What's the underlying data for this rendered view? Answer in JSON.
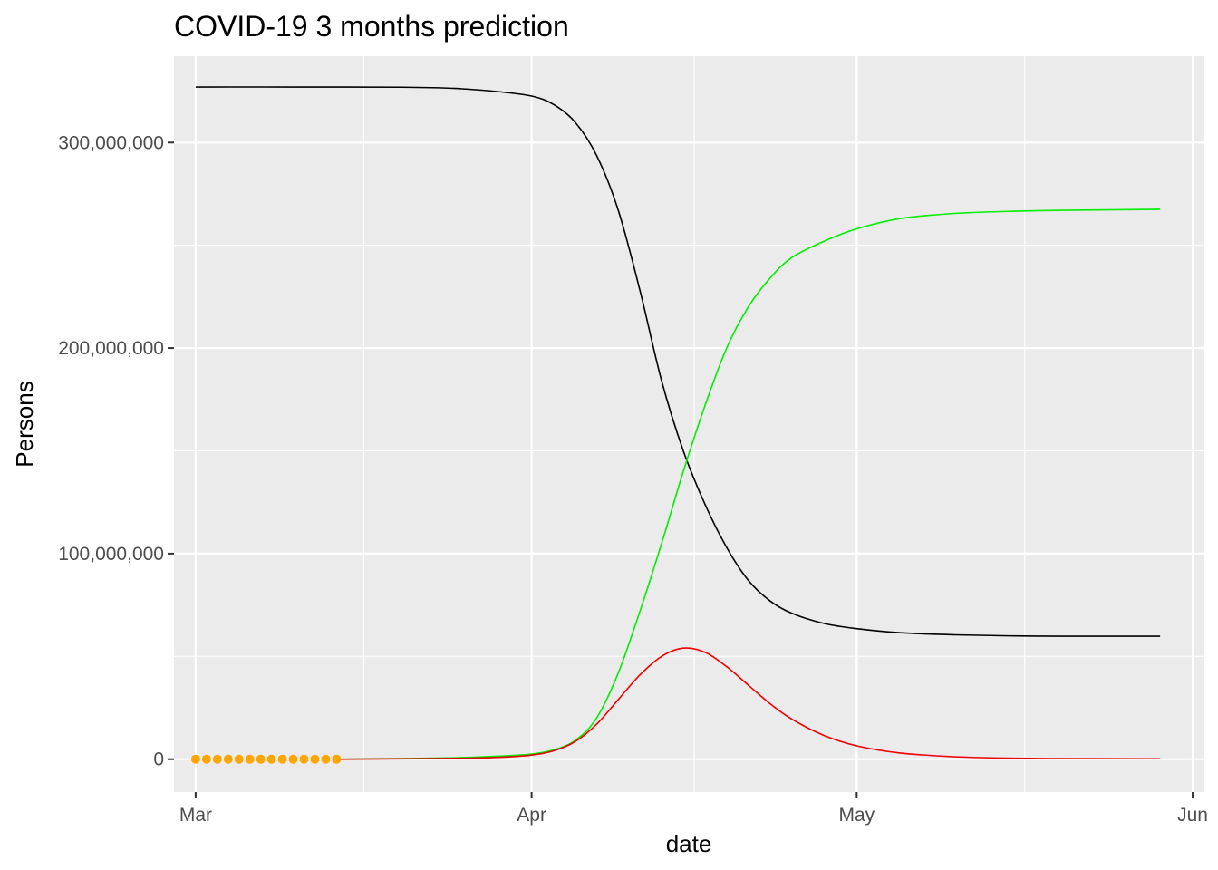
{
  "chart_data": {
    "type": "line",
    "title": "COVID-19 3 months prediction",
    "xlabel": "date",
    "ylabel": "Persons",
    "xlim": [
      "2020-02-28",
      "2020-06-02"
    ],
    "ylim": [
      -16000000,
      342000000
    ],
    "x_ticks": [
      {
        "date": "2020-03-01",
        "label": "Mar"
      },
      {
        "date": "2020-04-01",
        "label": "Apr"
      },
      {
        "date": "2020-05-01",
        "label": "May"
      },
      {
        "date": "2020-06-01",
        "label": "Jun"
      }
    ],
    "y_ticks": [
      {
        "value": 0,
        "label": "0"
      },
      {
        "value": 100000000,
        "label": "100,000,000"
      },
      {
        "value": 200000000,
        "label": "200,000,000"
      },
      {
        "value": 300000000,
        "label": "300,000,000"
      }
    ],
    "grid": true,
    "legend": "none",
    "series": [
      {
        "color": "#000000",
        "points": [
          [
            "2020-03-01",
            327000000
          ],
          [
            "2020-03-10",
            327000000
          ],
          [
            "2020-03-20",
            326900000
          ],
          [
            "2020-03-25",
            326300000
          ],
          [
            "2020-03-29",
            324700000
          ],
          [
            "2020-04-01",
            322600000
          ],
          [
            "2020-04-03",
            318600000
          ],
          [
            "2020-04-05",
            310000000
          ],
          [
            "2020-04-07",
            293700000
          ],
          [
            "2020-04-09",
            267000000
          ],
          [
            "2020-04-11",
            228000000
          ],
          [
            "2020-04-13",
            184000000
          ],
          [
            "2020-04-15",
            150000000
          ],
          [
            "2020-04-17",
            124000000
          ],
          [
            "2020-04-19",
            103000000
          ],
          [
            "2020-04-21",
            87000000
          ],
          [
            "2020-04-23",
            77000000
          ],
          [
            "2020-04-25",
            71000000
          ],
          [
            "2020-04-28",
            66000000
          ],
          [
            "2020-05-01",
            63500000
          ],
          [
            "2020-05-05",
            61500000
          ],
          [
            "2020-05-10",
            60500000
          ],
          [
            "2020-05-15",
            60000000
          ],
          [
            "2020-05-20",
            59800000
          ],
          [
            "2020-05-29",
            59800000
          ]
        ]
      },
      {
        "color": "#00ee00",
        "points": [
          [
            "2020-03-14",
            0
          ],
          [
            "2020-03-20",
            300000
          ],
          [
            "2020-03-25",
            700000
          ],
          [
            "2020-03-29",
            1500000
          ],
          [
            "2020-04-01",
            2500000
          ],
          [
            "2020-04-03",
            4500000
          ],
          [
            "2020-04-05",
            9000000
          ],
          [
            "2020-04-07",
            20000000
          ],
          [
            "2020-04-09",
            42000000
          ],
          [
            "2020-04-11",
            72000000
          ],
          [
            "2020-04-13",
            105000000
          ],
          [
            "2020-04-15",
            140000000
          ],
          [
            "2020-04-17",
            172000000
          ],
          [
            "2020-04-19",
            200000000
          ],
          [
            "2020-04-21",
            220000000
          ],
          [
            "2020-04-23",
            234000000
          ],
          [
            "2020-04-25",
            244000000
          ],
          [
            "2020-04-28",
            252000000
          ],
          [
            "2020-05-01",
            258000000
          ],
          [
            "2020-05-05",
            263000000
          ],
          [
            "2020-05-10",
            265500000
          ],
          [
            "2020-05-15",
            266500000
          ],
          [
            "2020-05-20",
            267000000
          ],
          [
            "2020-05-29",
            267500000
          ]
        ]
      },
      {
        "color": "#ee0000",
        "points": [
          [
            "2020-03-14",
            0
          ],
          [
            "2020-03-25",
            400000
          ],
          [
            "2020-03-29",
            900000
          ],
          [
            "2020-04-01",
            2000000
          ],
          [
            "2020-04-03",
            4000000
          ],
          [
            "2020-04-05",
            8500000
          ],
          [
            "2020-04-07",
            17000000
          ],
          [
            "2020-04-09",
            29000000
          ],
          [
            "2020-04-11",
            41000000
          ],
          [
            "2020-04-13",
            50000000
          ],
          [
            "2020-04-15",
            54000000
          ],
          [
            "2020-04-17",
            52000000
          ],
          [
            "2020-04-19",
            45000000
          ],
          [
            "2020-04-21",
            36000000
          ],
          [
            "2020-04-23",
            27000000
          ],
          [
            "2020-04-25",
            19500000
          ],
          [
            "2020-04-28",
            11500000
          ],
          [
            "2020-05-01",
            6500000
          ],
          [
            "2020-05-05",
            3000000
          ],
          [
            "2020-05-10",
            1200000
          ],
          [
            "2020-05-15",
            500000
          ],
          [
            "2020-05-20",
            300000
          ],
          [
            "2020-05-29",
            200000
          ]
        ]
      }
    ],
    "observed": {
      "color": "#ffa500",
      "points": [
        [
          "2020-03-01",
          0
        ],
        [
          "2020-03-02",
          0
        ],
        [
          "2020-03-03",
          0
        ],
        [
          "2020-03-04",
          0
        ],
        [
          "2020-03-05",
          0
        ],
        [
          "2020-03-06",
          0
        ],
        [
          "2020-03-07",
          0
        ],
        [
          "2020-03-08",
          0
        ],
        [
          "2020-03-09",
          0
        ],
        [
          "2020-03-10",
          0
        ],
        [
          "2020-03-11",
          0
        ],
        [
          "2020-03-12",
          0
        ],
        [
          "2020-03-13",
          0
        ],
        [
          "2020-03-14",
          0
        ]
      ]
    },
    "colors": {
      "panel_background": "#ebebeb",
      "grid_major": "#ffffff",
      "tick_text": "#4d4d4d",
      "tick_mark": "#333333"
    }
  }
}
